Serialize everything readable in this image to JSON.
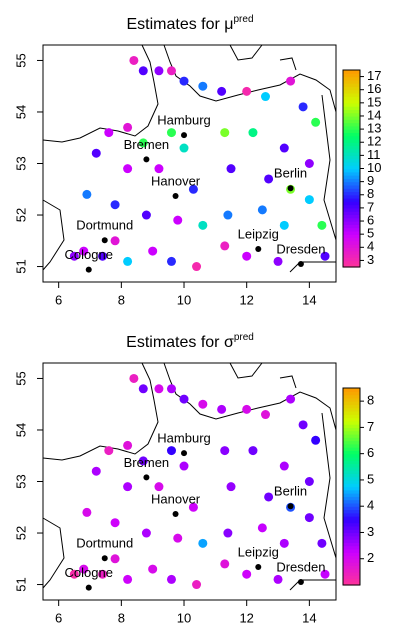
{
  "chart_data": [
    {
      "type": "scatter",
      "title": "Estimates for μ",
      "title_superscript": "pred",
      "xlim": [
        5.5,
        14.85
      ],
      "ylim": [
        50.7,
        55.3
      ],
      "xticks": [
        6,
        8,
        10,
        12,
        14
      ],
      "yticks": [
        51,
        52,
        53,
        54,
        55
      ],
      "clim": [
        2.5,
        17.5
      ],
      "cticks": [
        3,
        4,
        5,
        6,
        7,
        8,
        9,
        10,
        11,
        12,
        13,
        14,
        15,
        16,
        17
      ],
      "colormap": [
        "#ff3399",
        "#cc00ff",
        "#3300ff",
        "#00ccff",
        "#00ff66",
        "#ccff00",
        "#ff9900"
      ],
      "x": [
        8.4,
        8.7,
        9.2,
        9.6,
        10.0,
        10.6,
        11.2,
        12.0,
        12.6,
        13.4,
        13.8,
        14.2,
        7.6,
        8.2,
        8.7,
        9.6,
        10.0,
        11.3,
        12.2,
        13.2,
        14.0,
        7.2,
        8.2,
        9.2,
        10.3,
        11.5,
        12.7,
        13.4,
        14.0,
        6.9,
        7.8,
        8.8,
        9.8,
        10.6,
        11.4,
        12.5,
        13.2,
        14.4,
        6.8,
        7.4,
        8.2,
        9.0,
        9.6,
        10.4,
        11.3,
        12.0,
        13.0,
        14.5,
        6.5,
        7.8
      ],
      "y": [
        55.0,
        54.8,
        54.8,
        54.8,
        54.6,
        54.5,
        54.4,
        54.4,
        54.3,
        54.6,
        54.1,
        53.8,
        53.6,
        53.7,
        53.4,
        53.6,
        53.3,
        53.6,
        53.6,
        53.3,
        53.0,
        53.2,
        52.9,
        52.9,
        52.5,
        52.9,
        52.7,
        52.5,
        52.3,
        52.4,
        52.2,
        52.0,
        51.9,
        51.8,
        52.0,
        52.1,
        51.8,
        51.8,
        51.3,
        51.2,
        51.1,
        51.3,
        51.1,
        51.0,
        51.4,
        51.2,
        51.1,
        51.2,
        51.2,
        51.5
      ],
      "values": [
        3.5,
        7,
        6,
        3.5,
        8,
        9,
        7,
        3,
        10,
        4,
        8,
        13,
        5,
        4,
        13,
        13,
        11,
        14,
        12,
        7,
        6,
        7,
        5,
        5,
        8,
        7,
        7,
        14,
        10,
        9,
        8,
        7,
        5,
        11,
        9,
        9,
        10,
        13,
        5,
        7,
        10,
        5,
        8,
        3,
        3.5,
        5,
        6,
        7,
        6,
        4
      ],
      "cities": [
        {
          "name": "Hamburg",
          "lon": 10.0,
          "lat": 53.55
        },
        {
          "name": "Bremen",
          "lon": 8.8,
          "lat": 53.08
        },
        {
          "name": "Hanover",
          "lon": 9.73,
          "lat": 52.37
        },
        {
          "name": "Berlin",
          "lon": 13.4,
          "lat": 52.52
        },
        {
          "name": "Dortmund",
          "lon": 7.47,
          "lat": 51.51
        },
        {
          "name": "Leipzig",
          "lon": 12.37,
          "lat": 51.34
        },
        {
          "name": "Dresden",
          "lon": 13.73,
          "lat": 51.05
        },
        {
          "name": "Cologne",
          "lon": 6.96,
          "lat": 50.94
        }
      ]
    },
    {
      "type": "scatter",
      "title": "Estimates for σ",
      "title_superscript": "pred",
      "xlim": [
        5.5,
        14.85
      ],
      "ylim": [
        50.7,
        55.3
      ],
      "xticks": [
        6,
        8,
        10,
        12,
        14
      ],
      "yticks": [
        51,
        52,
        53,
        54,
        55
      ],
      "clim": [
        1,
        8.5
      ],
      "cticks": [
        2,
        3,
        4,
        5,
        6,
        7,
        8
      ],
      "colormap": [
        "#ff3399",
        "#cc00ff",
        "#3300ff",
        "#00ccff",
        "#00ff66",
        "#ccff00",
        "#ff9900"
      ],
      "x": [
        8.4,
        8.7,
        9.2,
        9.6,
        10.0,
        10.6,
        11.2,
        12.0,
        12.6,
        13.4,
        13.8,
        14.2,
        7.6,
        8.2,
        8.7,
        9.6,
        10.0,
        11.3,
        12.2,
        13.2,
        14.0,
        7.2,
        8.2,
        9.2,
        10.3,
        11.5,
        12.7,
        13.4,
        14.0,
        6.9,
        7.8,
        8.8,
        9.8,
        10.6,
        11.4,
        12.5,
        13.2,
        14.4,
        6.8,
        7.4,
        8.2,
        9.0,
        9.6,
        10.4,
        11.3,
        12.0,
        13.0,
        14.5,
        6.5,
        7.8
      ],
      "y": [
        55.0,
        54.8,
        54.8,
        54.8,
        54.6,
        54.5,
        54.4,
        54.4,
        54.3,
        54.6,
        54.1,
        53.8,
        53.6,
        53.7,
        53.4,
        53.6,
        53.3,
        53.6,
        53.6,
        53.3,
        53.0,
        53.2,
        52.9,
        52.9,
        52.5,
        52.9,
        52.7,
        52.5,
        52.3,
        52.4,
        52.2,
        52.0,
        51.9,
        51.8,
        52.0,
        52.1,
        51.8,
        51.8,
        51.3,
        51.2,
        51.1,
        51.3,
        51.1,
        51.0,
        51.4,
        51.2,
        51.1,
        51.2,
        51.2,
        51.5
      ],
      "values": [
        1.5,
        3,
        2,
        2.5,
        3,
        2,
        2.5,
        2,
        1.8,
        2.5,
        3,
        3.5,
        1.5,
        1.8,
        3,
        3.5,
        2.5,
        2.8,
        3,
        2.5,
        3,
        2.5,
        2.5,
        2,
        2.2,
        2.7,
        3,
        4,
        3,
        2,
        2.2,
        2.5,
        2,
        4.5,
        2.8,
        2.3,
        2.5,
        3,
        2,
        1.5,
        2.2,
        2,
        2.5,
        1.5,
        1.8,
        2.2,
        2.5,
        2.3,
        1.2,
        1.8
      ],
      "cities": [
        {
          "name": "Hamburg",
          "lon": 10.0,
          "lat": 53.55
        },
        {
          "name": "Bremen",
          "lon": 8.8,
          "lat": 53.08
        },
        {
          "name": "Hanover",
          "lon": 9.73,
          "lat": 52.37
        },
        {
          "name": "Berlin",
          "lon": 13.4,
          "lat": 52.52
        },
        {
          "name": "Dortmund",
          "lon": 7.47,
          "lat": 51.51
        },
        {
          "name": "Leipzig",
          "lon": 12.37,
          "lat": 51.34
        },
        {
          "name": "Dresden",
          "lon": 13.73,
          "lat": 51.05
        },
        {
          "name": "Cologne",
          "lon": 6.96,
          "lat": 50.94
        }
      ]
    }
  ]
}
